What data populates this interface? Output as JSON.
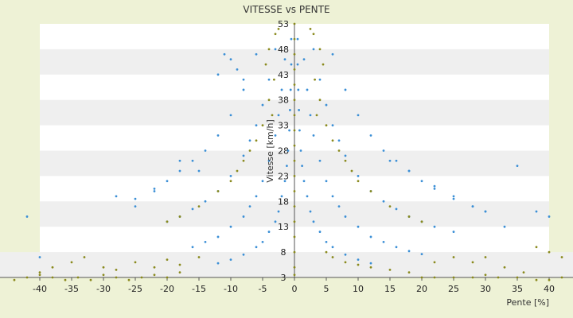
{
  "chart_data": {
    "type": "scatter",
    "title": "VITESSE vs PENTE",
    "xlabel": "Pente [%]",
    "ylabel": "Vitesse [km/h]",
    "xlim": [
      -40,
      40
    ],
    "ylim": [
      3,
      53
    ],
    "x_ticks": [
      "-40",
      "-35",
      "-30",
      "-25",
      "-20",
      "-15",
      "-10",
      "-5",
      "0",
      "5",
      "10",
      "15",
      "20",
      "25",
      "30",
      "35",
      "40"
    ],
    "y_ticks": [
      "3",
      "8",
      "13",
      "18",
      "23",
      "28",
      "33",
      "38",
      "43",
      "48",
      "53"
    ],
    "grid": "horizontal bands",
    "legend": "none",
    "colors": {
      "series_blue": "#3b8fd6",
      "series_olive": "#8a8a1e",
      "band": "#efefef",
      "plot_bg": "#ffffff"
    },
    "series": [
      {
        "color": "#3b8fd6",
        "points": [
          [
            0.5,
            50
          ],
          [
            0.5,
            45
          ],
          [
            0.6,
            40
          ],
          [
            0.7,
            36
          ],
          [
            0.8,
            32
          ],
          [
            1.0,
            28
          ],
          [
            1.2,
            25
          ],
          [
            1.5,
            22
          ],
          [
            2,
            19
          ],
          [
            2.5,
            16
          ],
          [
            3,
            14
          ],
          [
            4,
            12
          ],
          [
            5,
            10
          ],
          [
            6,
            9
          ],
          [
            8,
            7.5
          ],
          [
            10,
            6.5
          ],
          [
            12,
            5.8
          ],
          [
            1.5,
            46
          ],
          [
            2,
            40
          ],
          [
            2.5,
            35
          ],
          [
            3,
            31
          ],
          [
            4,
            26
          ],
          [
            5,
            22
          ],
          [
            6,
            19
          ],
          [
            7,
            17
          ],
          [
            8,
            15
          ],
          [
            10,
            13
          ],
          [
            12,
            11
          ],
          [
            14,
            10
          ],
          [
            16,
            9
          ],
          [
            18,
            8.2
          ],
          [
            20,
            7.6
          ],
          [
            3,
            48
          ],
          [
            4,
            42
          ],
          [
            5,
            37
          ],
          [
            6,
            33
          ],
          [
            7,
            30
          ],
          [
            8,
            27
          ],
          [
            10,
            23
          ],
          [
            12,
            20
          ],
          [
            14,
            18
          ],
          [
            16,
            16.5
          ],
          [
            18,
            15
          ],
          [
            20,
            14
          ],
          [
            22,
            13
          ],
          [
            25,
            12
          ],
          [
            6,
            47
          ],
          [
            8,
            40
          ],
          [
            10,
            35
          ],
          [
            12,
            31
          ],
          [
            14,
            28
          ],
          [
            16,
            26
          ],
          [
            18,
            24
          ],
          [
            20,
            22
          ],
          [
            22,
            20.5
          ],
          [
            25,
            18.5
          ],
          [
            28,
            17
          ],
          [
            30,
            16
          ],
          [
            -0.5,
            50
          ],
          [
            -0.5,
            45
          ],
          [
            -0.6,
            40
          ],
          [
            -0.7,
            36
          ],
          [
            -0.8,
            32
          ],
          [
            -1.0,
            28
          ],
          [
            -1.2,
            25
          ],
          [
            -1.5,
            22
          ],
          [
            -2,
            19
          ],
          [
            -2.5,
            16
          ],
          [
            -3,
            14
          ],
          [
            -4,
            12
          ],
          [
            -5,
            10
          ],
          [
            -6,
            9
          ],
          [
            -8,
            7.5
          ],
          [
            -10,
            6.5
          ],
          [
            -12,
            5.8
          ],
          [
            -1.5,
            46
          ],
          [
            -2,
            40
          ],
          [
            -2.5,
            35
          ],
          [
            -3,
            31
          ],
          [
            -4,
            26
          ],
          [
            -5,
            22
          ],
          [
            -6,
            19
          ],
          [
            -7,
            17
          ],
          [
            -8,
            15
          ],
          [
            -10,
            13
          ],
          [
            -12,
            11
          ],
          [
            -14,
            10
          ],
          [
            -16,
            9
          ],
          [
            -3,
            48
          ],
          [
            -4,
            42
          ],
          [
            -5,
            37
          ],
          [
            -6,
            33
          ],
          [
            -7,
            30
          ],
          [
            -8,
            27
          ],
          [
            -10,
            23
          ],
          [
            -12,
            20
          ],
          [
            -14,
            18
          ],
          [
            -16,
            16.5
          ],
          [
            -18,
            15
          ],
          [
            -20,
            14
          ],
          [
            -6,
            47
          ],
          [
            -8,
            40
          ],
          [
            -10,
            35
          ],
          [
            -12,
            31
          ],
          [
            -14,
            28
          ],
          [
            -16,
            26
          ],
          [
            -18,
            24
          ],
          [
            -20,
            22
          ],
          [
            -22,
            20.5
          ],
          [
            -25,
            18.5
          ],
          [
            -10,
            46
          ],
          [
            -12,
            43
          ],
          [
            -9,
            44
          ],
          [
            -11,
            47
          ],
          [
            -8,
            42
          ],
          [
            35,
            25
          ],
          [
            38,
            16
          ],
          [
            40,
            15
          ],
          [
            -42,
            15
          ],
          [
            -40,
            7
          ],
          [
            -28,
            19
          ],
          [
            -25,
            17
          ],
          [
            -22,
            20
          ],
          [
            -18,
            26
          ],
          [
            -15,
            24
          ],
          [
            15,
            26
          ],
          [
            18,
            24
          ],
          [
            22,
            21
          ],
          [
            25,
            19
          ],
          [
            28,
            17
          ],
          [
            30,
            16
          ],
          [
            33,
            13
          ]
        ]
      },
      {
        "color": "#8a8a1e",
        "points": [
          [
            0,
            53
          ],
          [
            0,
            50
          ],
          [
            0,
            47
          ],
          [
            0,
            44
          ],
          [
            0,
            41
          ],
          [
            0,
            38
          ],
          [
            0,
            35
          ],
          [
            0,
            32
          ],
          [
            0,
            29
          ],
          [
            0,
            26
          ],
          [
            0,
            23
          ],
          [
            0,
            20
          ],
          [
            0,
            17
          ],
          [
            0,
            14
          ],
          [
            0,
            11
          ],
          [
            0,
            8
          ],
          [
            0,
            5
          ],
          [
            0,
            3.5
          ],
          [
            2.5,
            52
          ],
          [
            3,
            51
          ],
          [
            4,
            48
          ],
          [
            4.5,
            45
          ],
          [
            3.2,
            42
          ],
          [
            4,
            38
          ],
          [
            3.5,
            35
          ],
          [
            5,
            33
          ],
          [
            6,
            30
          ],
          [
            7,
            28
          ],
          [
            8,
            26
          ],
          [
            9,
            24
          ],
          [
            10,
            22
          ],
          [
            12,
            20
          ],
          [
            15,
            17
          ],
          [
            18,
            15
          ],
          [
            20,
            14
          ],
          [
            -2.5,
            52
          ],
          [
            -3,
            51
          ],
          [
            -4,
            48
          ],
          [
            -4.5,
            45
          ],
          [
            -3.2,
            42
          ],
          [
            -4,
            38
          ],
          [
            -3.5,
            35
          ],
          [
            -5,
            33
          ],
          [
            -6,
            30
          ],
          [
            -7,
            28
          ],
          [
            -8,
            26
          ],
          [
            -9,
            24
          ],
          [
            -10,
            22
          ],
          [
            -12,
            20
          ],
          [
            -15,
            17
          ],
          [
            -18,
            15
          ],
          [
            -20,
            14
          ],
          [
            -44,
            2.5
          ],
          [
            -42,
            3
          ],
          [
            -40,
            3.5
          ],
          [
            -38,
            3
          ],
          [
            -36,
            2.5
          ],
          [
            -34,
            3
          ],
          [
            -32,
            2.5
          ],
          [
            -30,
            3.5
          ],
          [
            -28,
            3
          ],
          [
            -26,
            2.5
          ],
          [
            -24,
            3
          ],
          [
            -22,
            3.5
          ],
          [
            -20,
            3
          ],
          [
            -18,
            4
          ],
          [
            -40,
            4
          ],
          [
            -38,
            5
          ],
          [
            -35,
            6
          ],
          [
            -33,
            7
          ],
          [
            -30,
            5
          ],
          [
            -28,
            4.5
          ],
          [
            -25,
            6
          ],
          [
            -22,
            5
          ],
          [
            -20,
            6.5
          ],
          [
            -18,
            5.5
          ],
          [
            -15,
            7
          ],
          [
            20,
            3
          ],
          [
            22,
            3
          ],
          [
            25,
            3
          ],
          [
            28,
            3
          ],
          [
            30,
            3.5
          ],
          [
            32,
            3
          ],
          [
            35,
            3
          ],
          [
            38,
            2.5
          ],
          [
            40,
            2.5
          ],
          [
            42,
            3
          ],
          [
            44,
            3
          ],
          [
            22,
            6
          ],
          [
            25,
            7
          ],
          [
            28,
            6
          ],
          [
            30,
            7
          ],
          [
            33,
            5
          ],
          [
            36,
            4
          ],
          [
            38,
            9
          ],
          [
            40,
            8
          ],
          [
            42,
            7
          ],
          [
            44,
            6
          ],
          [
            5,
            8
          ],
          [
            6,
            7
          ],
          [
            8,
            6
          ],
          [
            10,
            5.5
          ],
          [
            12,
            5
          ],
          [
            15,
            4.5
          ],
          [
            18,
            4
          ]
        ]
      }
    ]
  }
}
